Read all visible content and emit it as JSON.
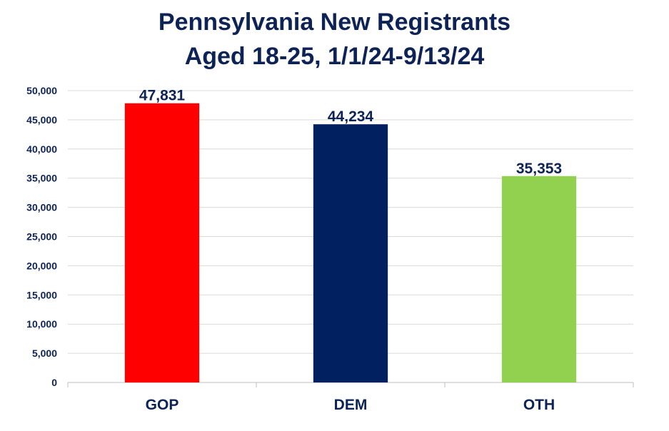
{
  "chart_data": {
    "type": "bar",
    "title_line1": "Pennsylvania New Registrants",
    "title_line2": "Aged 18-25, 1/1/24-9/13/24",
    "categories": [
      "GOP",
      "DEM",
      "OTH"
    ],
    "values": [
      47831,
      44234,
      35353
    ],
    "data_labels": [
      "47,831",
      "44,234",
      "35,353"
    ],
    "colors": [
      "#ff0000",
      "#002060",
      "#92d050"
    ],
    "ylim": [
      0,
      50000
    ],
    "yticks": [
      0,
      5000,
      10000,
      15000,
      20000,
      25000,
      30000,
      35000,
      40000,
      45000,
      50000
    ],
    "ytick_labels": [
      "0",
      "5,000",
      "10,000",
      "15,000",
      "20,000",
      "25,000",
      "30,000",
      "35,000",
      "40,000",
      "45,000",
      "50,000"
    ],
    "xlabel": "",
    "ylabel": "",
    "grid": true,
    "legend": "none"
  }
}
